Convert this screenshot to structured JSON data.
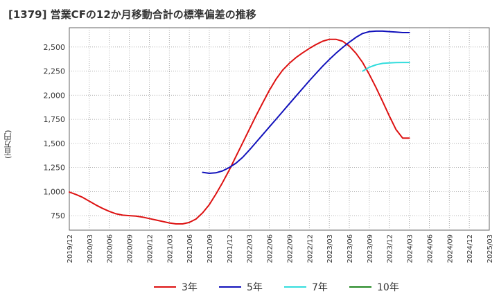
{
  "chart_data": {
    "type": "line",
    "title": "[1379]  営業CFの12か月移動合計の標準偏差の推移",
    "ylabel": "(百万円)",
    "xlabel": "",
    "ylim": [
      600,
      2700
    ],
    "y_ticks": [
      750,
      1000,
      1250,
      1500,
      1750,
      2000,
      2250,
      2500
    ],
    "y_tick_labels": [
      "750",
      "1,000",
      "1,250",
      "1,500",
      "1,750",
      "2,000",
      "2,250",
      "2,500"
    ],
    "x_tick_labels": [
      "2019/12",
      "2020/03",
      "2020/06",
      "2020/09",
      "2020/12",
      "2021/03",
      "2021/06",
      "2021/09",
      "2021/12",
      "2022/03",
      "2022/06",
      "2022/09",
      "2022/12",
      "2023/03",
      "2023/06",
      "2023/09",
      "2023/12",
      "2024/03",
      "2024/06",
      "2024/09",
      "2024/12",
      "2025/03"
    ],
    "grid": true,
    "legend_position": "bottom",
    "series": [
      {
        "name": "3年",
        "color": "#dd1111",
        "x": [
          "2019/12",
          "2020/01",
          "2020/02",
          "2020/03",
          "2020/04",
          "2020/05",
          "2020/06",
          "2020/07",
          "2020/08",
          "2020/09",
          "2020/10",
          "2020/11",
          "2020/12",
          "2021/01",
          "2021/02",
          "2021/03",
          "2021/04",
          "2021/05",
          "2021/06",
          "2021/07",
          "2021/08",
          "2021/09",
          "2021/10",
          "2021/11",
          "2021/12",
          "2022/01",
          "2022/02",
          "2022/03",
          "2022/04",
          "2022/05",
          "2022/06",
          "2022/07",
          "2022/08",
          "2022/09",
          "2022/10",
          "2022/11",
          "2022/12",
          "2023/01",
          "2023/02",
          "2023/03",
          "2023/04",
          "2023/05",
          "2023/06",
          "2023/07",
          "2023/08",
          "2023/09",
          "2023/10",
          "2023/11",
          "2023/12",
          "2024/01",
          "2024/02",
          "2024/03"
        ],
        "values": [
          995,
          970,
          940,
          900,
          860,
          825,
          795,
          770,
          755,
          750,
          745,
          735,
          720,
          705,
          690,
          675,
          665,
          665,
          680,
          715,
          780,
          865,
          975,
          1095,
          1225,
          1365,
          1505,
          1645,
          1785,
          1920,
          2050,
          2165,
          2260,
          2330,
          2390,
          2440,
          2485,
          2525,
          2560,
          2580,
          2580,
          2560,
          2510,
          2435,
          2340,
          2215,
          2080,
          1935,
          1785,
          1645,
          1555,
          1555
        ]
      },
      {
        "name": "5年",
        "color": "#1111bb",
        "x": [
          "2021/08",
          "2021/09",
          "2021/10",
          "2021/11",
          "2021/12",
          "2022/01",
          "2022/02",
          "2022/03",
          "2022/04",
          "2022/05",
          "2022/06",
          "2022/07",
          "2022/08",
          "2022/09",
          "2022/10",
          "2022/11",
          "2022/12",
          "2023/01",
          "2023/02",
          "2023/03",
          "2023/04",
          "2023/05",
          "2023/06",
          "2023/07",
          "2023/08",
          "2023/09",
          "2023/10",
          "2023/11",
          "2023/12",
          "2024/01",
          "2024/02",
          "2024/03"
        ],
        "values": [
          1200,
          1190,
          1195,
          1215,
          1250,
          1295,
          1355,
          1430,
          1510,
          1590,
          1670,
          1750,
          1830,
          1910,
          1990,
          2070,
          2150,
          2225,
          2300,
          2370,
          2435,
          2495,
          2550,
          2600,
          2640,
          2660,
          2665,
          2665,
          2660,
          2655,
          2650,
          2650
        ]
      },
      {
        "name": "7年",
        "color": "#33dddd",
        "x": [
          "2023/08",
          "2023/09",
          "2023/10",
          "2023/11",
          "2023/12",
          "2024/01",
          "2024/02",
          "2024/03"
        ],
        "values": [
          2250,
          2290,
          2315,
          2330,
          2335,
          2338,
          2340,
          2340
        ]
      },
      {
        "name": "10年",
        "color": "#228822",
        "x": [],
        "values": []
      }
    ]
  }
}
